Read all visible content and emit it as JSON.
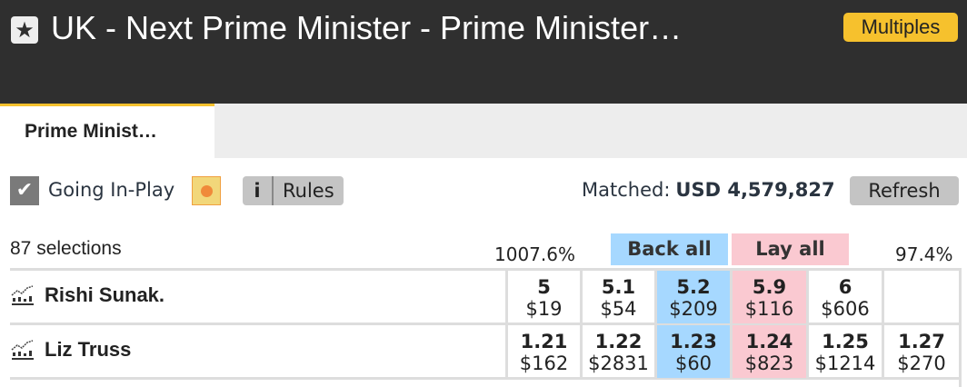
{
  "header": {
    "title": "UK - Next Prime Minister - Prime Minister…",
    "multiples_label": "Multiples",
    "star_icon": "star-icon"
  },
  "tabs": [
    {
      "label": "Prime Minist…",
      "active": true
    }
  ],
  "controls": {
    "going_inplay_label": "Going In-Play",
    "going_inplay_checked": true,
    "info_label": "i",
    "rules_label": "Rules",
    "matched_label": "Matched:",
    "matched_value": "USD 4,579,827",
    "refresh_label": "Refresh"
  },
  "market": {
    "selections": "87 selections",
    "back_overround": "1007.6%",
    "lay_overround": "97.4%",
    "back_all": "Back all",
    "lay_all": "Lay all"
  },
  "colors": {
    "back": "#a6d8ff",
    "lay": "#fac9d1",
    "accent": "#f6c12d"
  },
  "runners": [
    {
      "name": "Rishi Sunak.",
      "prices": [
        {
          "odds": "5",
          "size": "$19"
        },
        {
          "odds": "5.1",
          "size": "$54"
        },
        {
          "odds": "5.2",
          "size": "$209"
        },
        {
          "odds": "5.9",
          "size": "$116"
        },
        {
          "odds": "6",
          "size": "$606"
        },
        {
          "odds": "",
          "size": ""
        }
      ]
    },
    {
      "name": "Liz Truss",
      "prices": [
        {
          "odds": "1.21",
          "size": "$162"
        },
        {
          "odds": "1.22",
          "size": "$2831"
        },
        {
          "odds": "1.23",
          "size": "$60"
        },
        {
          "odds": "1.24",
          "size": "$823"
        },
        {
          "odds": "1.25",
          "size": "$1214"
        },
        {
          "odds": "1.27",
          "size": "$270"
        }
      ]
    }
  ]
}
